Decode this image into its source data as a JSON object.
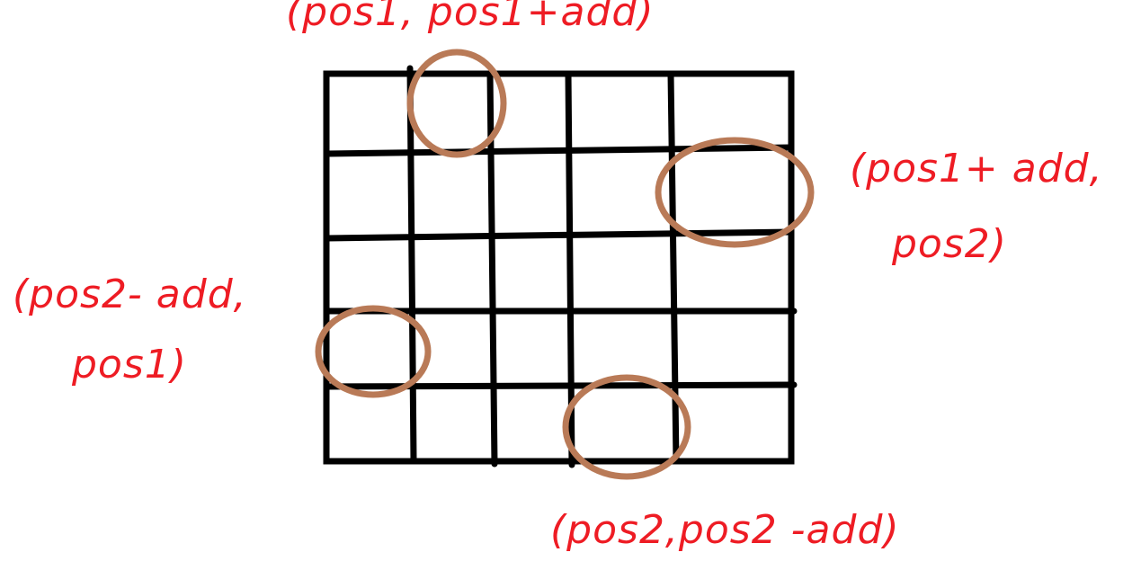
{
  "colors": {
    "ink": "#000000",
    "annotation": "#ee1c24",
    "circle": "#b97a57",
    "background": "#ffffff"
  },
  "grid": {
    "rows": 5,
    "cols": 5
  },
  "labels": {
    "top": "(pos1, pos1+add)",
    "right_line1": "(pos1+ add,",
    "right_line2": "pos2)",
    "left_line1": "(pos2- add,",
    "left_line2": "pos1)",
    "bottom": "(pos2,pos2 -add)"
  }
}
